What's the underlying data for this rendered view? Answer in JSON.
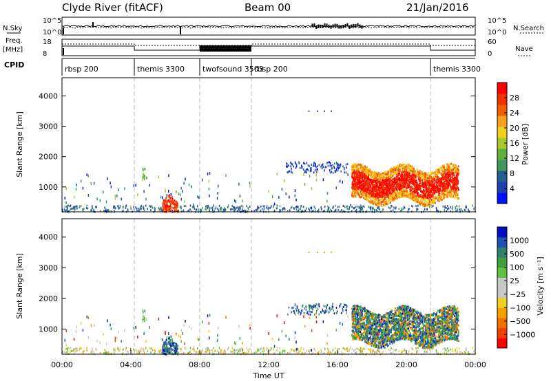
{
  "header": {
    "station": "Clyde River (fitACF)",
    "beam": "Beam 00",
    "date": "21/Jan/2016"
  },
  "top_panel": {
    "left_label": "N.Sky",
    "left_ticks": [
      "10^5",
      "10^0"
    ],
    "right_label": "N.Search",
    "right_ticks": [
      "10^5",
      "10^0"
    ]
  },
  "freq_panel": {
    "left_label_1": "Freq.",
    "left_label_2": "[MHz]",
    "left_ticks": [
      "18",
      "8"
    ],
    "right_label": "Nave",
    "right_ticks": [
      "60",
      "0"
    ]
  },
  "cpid": {
    "label": "CPID",
    "segments": [
      {
        "name": "rbsp 200",
        "start": 0.0
      },
      {
        "name": "themis 3300",
        "start": 4.2
      },
      {
        "name": "twofsound 3503",
        "start": 8.0
      },
      {
        "name": "rbsp 200",
        "start": 11.0
      },
      {
        "name": "themis 3300",
        "start": 21.4
      }
    ]
  },
  "chart_data": [
    {
      "type": "heatmap",
      "title": "",
      "ylabel": "Slant Range [km]",
      "xlabel": "",
      "xlim": [
        0,
        24
      ],
      "ylim": [
        180,
        4600
      ],
      "yticks": [
        "1000",
        "2000",
        "3000",
        "4000"
      ],
      "colorbar_label": "Power [dB]",
      "colorbar_ticks": [
        "28",
        "24",
        "20",
        "16",
        "12",
        "8",
        "4"
      ],
      "colorbar_colors": [
        "#0010ff",
        "#2040b0",
        "#206090",
        "#409860",
        "#60b040",
        "#a8c830",
        "#f0d020",
        "#f8a020",
        "#f06000",
        "#f03000",
        "#ff0000"
      ]
    },
    {
      "type": "heatmap",
      "title": "",
      "ylabel": "Slant Range [km]",
      "xlabel": "Time UT",
      "xlim": [
        0,
        24
      ],
      "ylim": [
        180,
        4600
      ],
      "yticks": [
        "1000",
        "2000",
        "3000",
        "4000"
      ],
      "xticks": [
        "00:00",
        "04:00",
        "08:00",
        "12:00",
        "16:00",
        "20:00",
        "00:00"
      ],
      "colorbar_label": "Velocity [m s⁻¹]",
      "colorbar_ticks": [
        "1000",
        "500",
        "100",
        "25",
        "−25",
        "−100",
        "−500",
        "−1000"
      ],
      "colorbar_colors": [
        "#0010c0",
        "#2050b0",
        "#308070",
        "#40a040",
        "#60c040",
        "#c8c8c8",
        "#c8c8c8",
        "#f0d020",
        "#f8a000",
        "#f07000",
        "#f04000",
        "#ff0000"
      ]
    }
  ]
}
